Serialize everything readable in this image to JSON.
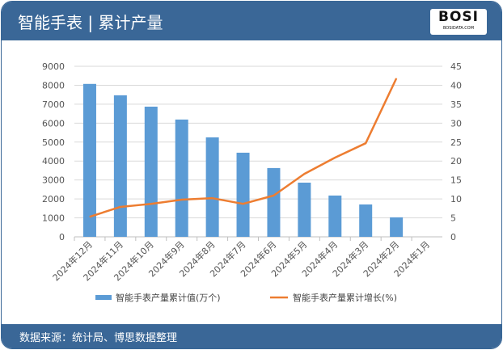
{
  "header": {
    "title": "智能手表 | 累计产量",
    "logo_text": "BOSI",
    "logo_sub": "BOSIDATA.COM"
  },
  "footer": {
    "source": "数据来源：统计局、博思数据整理"
  },
  "colors": {
    "bar": "#5b9bd5",
    "line": "#ed7d31",
    "header": "#3a6797"
  },
  "chart_data": {
    "type": "bar+line",
    "categories": [
      "2024年12月",
      "2024年11月",
      "2024年10月",
      "2024年9月",
      "2024年8月",
      "2024年7月",
      "2024年6月",
      "2024年5月",
      "2024年4月",
      "2024年3月",
      "2024年2月",
      "2024年1月"
    ],
    "series": [
      {
        "name": "智能手表产量累计值(万个)",
        "type": "bar",
        "axis": "left",
        "values": [
          8070,
          7470,
          6870,
          6190,
          5250,
          4440,
          3630,
          2860,
          2180,
          1710,
          1030,
          null
        ]
      },
      {
        "name": "智能手表产量累计增长(%)",
        "type": "line",
        "axis": "right",
        "values": [
          5.3,
          7.9,
          8.7,
          9.8,
          10.2,
          8.7,
          10.9,
          16.6,
          20.9,
          24.7,
          41.8,
          null
        ]
      }
    ],
    "ylim_left": [
      0,
      9000
    ],
    "yticks_left": [
      0,
      1000,
      2000,
      3000,
      4000,
      5000,
      6000,
      7000,
      8000,
      9000
    ],
    "ylim_right": [
      0,
      45
    ],
    "yticks_right": [
      0,
      5,
      10,
      15,
      20,
      25,
      30,
      35,
      40,
      45
    ],
    "grid": true,
    "legend": "bottom"
  }
}
